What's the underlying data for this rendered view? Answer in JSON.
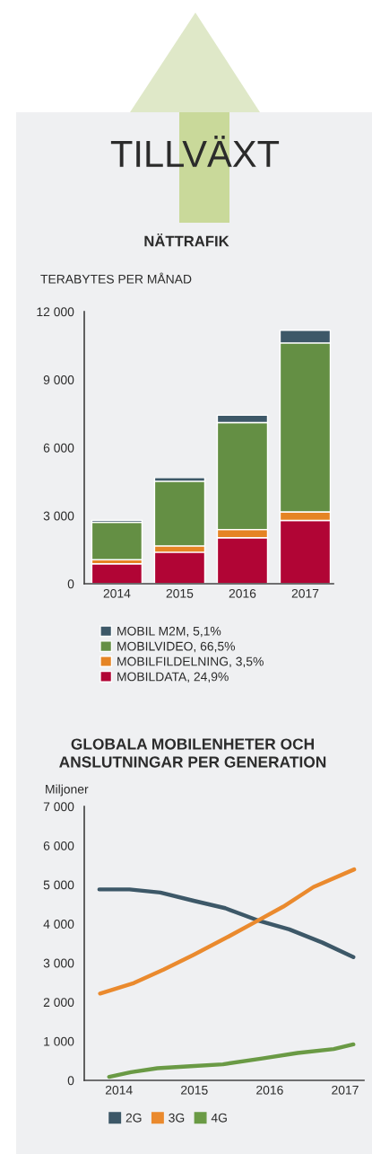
{
  "chart_data": [
    {
      "type": "bar",
      "title": "TILLVÄXT",
      "subtitle": "NÄTTRAFIK",
      "ylabel": "TERABYTES PER MÅNAD",
      "categories": [
        "2014",
        "2015",
        "2016",
        "2017"
      ],
      "stacked": true,
      "series": [
        {
          "name": "MOBILDATA, 24,9%",
          "color": "#b10535",
          "values": [
            880,
            1390,
            2030,
            2790
          ]
        },
        {
          "name": "MOBILFILDELNING, 3,5%",
          "color": "#e58424",
          "values": [
            180,
            280,
            360,
            380
          ]
        },
        {
          "name": "MOBILVIDEO, 66,5%",
          "color": "#648f44",
          "values": [
            1650,
            2850,
            4720,
            7450
          ]
        },
        {
          "name": "MOBIL M2M, 5,1%",
          "color": "#3d5868",
          "values": [
            80,
            160,
            320,
            560
          ]
        }
      ],
      "ylim": [
        0,
        12000
      ],
      "yticks": [
        0,
        {
          "value": 3000,
          "label": "3 000"
        },
        {
          "value": 6000,
          "label": "6 000"
        },
        {
          "value": 9000,
          "label": "9 000"
        },
        {
          "value": 12000,
          "label": "12 000"
        }
      ],
      "legend": "bottom",
      "grid": false
    },
    {
      "type": "line",
      "title": "GLOBALA MOBILENHETER OCH ANSLUTNINGAR PER GENERATION",
      "ylabel": "Miljoner",
      "series": [
        {
          "name": "2G",
          "color": "#3d5868",
          "x": [
            2013.74,
            2014.14,
            2014.55,
            2014.99,
            2015.41,
            2015.84,
            2016.26,
            2016.7,
            2017.11
          ],
          "values": [
            4880,
            4880,
            4800,
            4590,
            4400,
            4090,
            3860,
            3520,
            3150
          ]
        },
        {
          "name": "3G",
          "color": "#ea8a2e",
          "x": [
            2013.75,
            2014.2,
            2014.59,
            2014.99,
            2015.41,
            2015.82,
            2016.18,
            2016.58,
            2017.12
          ],
          "values": [
            2220,
            2490,
            2830,
            3210,
            3630,
            4060,
            4440,
            4940,
            5390
          ]
        },
        {
          "name": "4G",
          "color": "#6a9a45",
          "x": [
            2013.87,
            2014.16,
            2014.51,
            2014.95,
            2015.38,
            2015.9,
            2016.37,
            2016.85,
            2017.11
          ],
          "values": [
            90,
            210,
            310,
            360,
            410,
            560,
            700,
            800,
            920
          ]
        }
      ],
      "xlim": [
        2013.54,
        2017.25
      ],
      "xticks": [
        2014,
        2015,
        2016,
        2017
      ],
      "ylim": [
        0,
        7000
      ],
      "yticks": [
        0,
        {
          "value": 1000,
          "label": "1 000"
        },
        {
          "value": 2000,
          "label": "2 000"
        },
        {
          "value": 3000,
          "label": "3 000"
        },
        {
          "value": 4000,
          "label": "4 000"
        },
        {
          "value": 5000,
          "label": "5 000"
        },
        {
          "value": 6000,
          "label": "6 000"
        },
        {
          "value": 7000,
          "label": "7 000"
        }
      ],
      "legend": "bottom",
      "grid": false,
      "marker": "none",
      "line_style": "solid"
    }
  ]
}
